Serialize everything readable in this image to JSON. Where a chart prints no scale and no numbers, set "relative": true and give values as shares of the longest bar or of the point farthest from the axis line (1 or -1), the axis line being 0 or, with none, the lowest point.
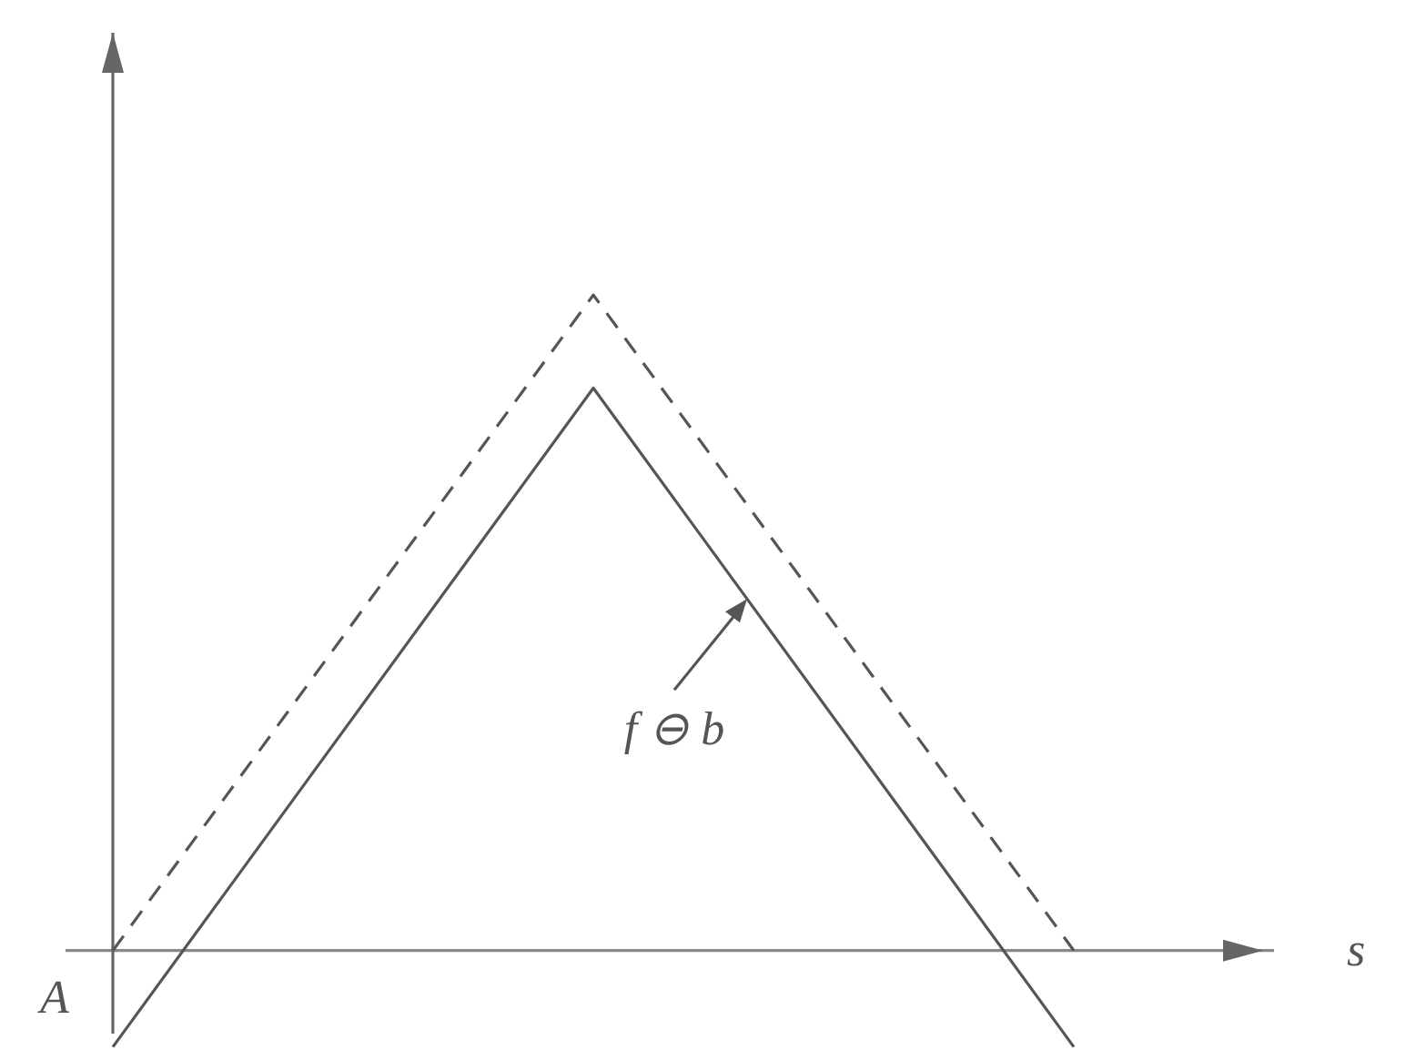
{
  "chart_data": {
    "type": "line",
    "relative": true,
    "xlabel": "s",
    "annotations": [
      "A"
    ],
    "categories": [
      null,
      null,
      null
    ],
    "ylim": [
      -0.16,
      1.4
    ],
    "series": [
      {
        "color": "#555555",
        "line_style": "dashed",
        "values": [
          0,
          1,
          0
        ]
      },
      {
        "name": "f ⊖ b",
        "color": "#555555",
        "line_style": "solid",
        "values": [
          -0.147,
          0.858,
          -0.147
        ]
      }
    ]
  }
}
